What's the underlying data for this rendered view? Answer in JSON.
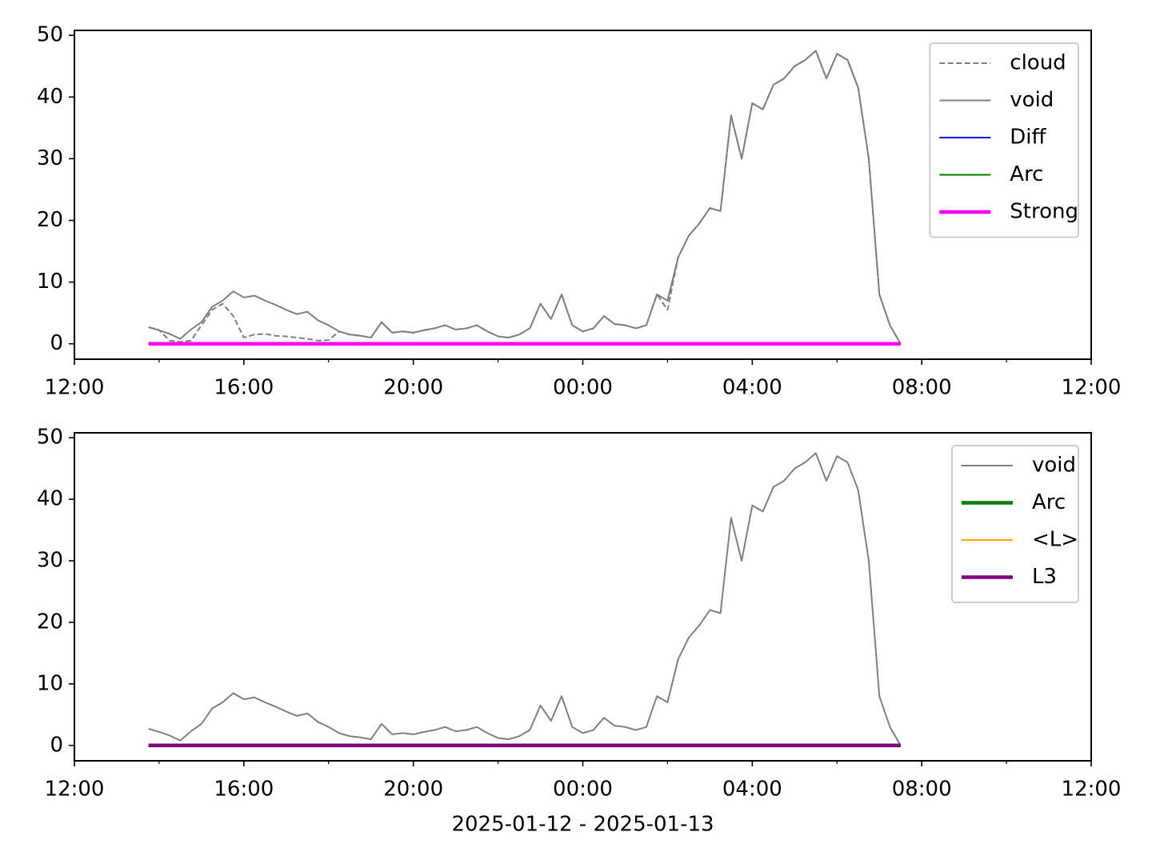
{
  "chart_data": [
    {
      "type": "line",
      "x": [
        1.75,
        2,
        2.25,
        2.5,
        2.75,
        3,
        3.25,
        3.5,
        3.75,
        4,
        4.25,
        4.5,
        4.75,
        5,
        5.25,
        5.5,
        5.75,
        6,
        6.25,
        6.5,
        6.75,
        7,
        7.25,
        7.5,
        7.75,
        8,
        8.25,
        8.5,
        8.75,
        9,
        9.25,
        9.5,
        9.75,
        10,
        10.25,
        10.5,
        10.75,
        11,
        11.25,
        11.5,
        11.75,
        12,
        12.25,
        12.5,
        12.75,
        13,
        13.25,
        13.5,
        13.75,
        14,
        14.25,
        14.5,
        14.75,
        15,
        15.25,
        15.5,
        15.75,
        16,
        16.25,
        16.5,
        16.75,
        17,
        17.25,
        17.5,
        17.75,
        18,
        18.25,
        18.5,
        18.75,
        19,
        19.25,
        19.5
      ],
      "series": [
        {
          "name": "cloud",
          "color": "#808080",
          "linestyle": "dashed",
          "linewidth": 2,
          "values": [
            2.7,
            2.2,
            0.5,
            0.3,
            0.5,
            3.0,
            5.5,
            6.5,
            4.5,
            1.0,
            1.5,
            1.6,
            1.3,
            1.2,
            1.0,
            0.8,
            0.5,
            0.6,
            2.0,
            1.5,
            1.3,
            1.0,
            3.5,
            1.8,
            2.0,
            1.8,
            2.2,
            2.5,
            3.0,
            2.3,
            2.5,
            3.0,
            2.0,
            1.2,
            1.0,
            1.5,
            2.5,
            6.5,
            4.0,
            8.0,
            3.0,
            2.0,
            2.5,
            4.5,
            3.2,
            3.0,
            2.5,
            3.0,
            8.0,
            5.5,
            14.0,
            17.5,
            19.5,
            22.0,
            21.5,
            37.0,
            30.0,
            39.0,
            38.0,
            42.0,
            43.0,
            45.0,
            46.0,
            47.5,
            43.0,
            47.0,
            46.0,
            41.5,
            30.0,
            8.0,
            3.0,
            0.0
          ]
        },
        {
          "name": "void",
          "color": "#808080",
          "linestyle": "solid",
          "linewidth": 2,
          "values": [
            2.7,
            2.2,
            1.6,
            0.8,
            2.3,
            3.5,
            6.0,
            7.0,
            8.5,
            7.5,
            7.8,
            7.0,
            6.3,
            5.5,
            4.8,
            5.2,
            3.8,
            3.0,
            2.0,
            1.5,
            1.3,
            1.0,
            3.5,
            1.8,
            2.0,
            1.8,
            2.2,
            2.5,
            3.0,
            2.3,
            2.5,
            3.0,
            2.0,
            1.2,
            1.0,
            1.5,
            2.5,
            6.5,
            4.0,
            8.0,
            3.0,
            2.0,
            2.5,
            4.5,
            3.2,
            3.0,
            2.5,
            3.0,
            8.0,
            7.0,
            14.0,
            17.5,
            19.5,
            22.0,
            21.5,
            37.0,
            30.0,
            39.0,
            38.0,
            42.0,
            43.0,
            45.0,
            46.0,
            47.5,
            43.0,
            47.0,
            46.0,
            41.5,
            30.0,
            8.0,
            3.0,
            0.0
          ]
        },
        {
          "name": "Diff",
          "color": "#0000ff",
          "linestyle": "solid",
          "linewidth": 2,
          "values": [
            0,
            0,
            0,
            0,
            0,
            0,
            0,
            0,
            0,
            0,
            0,
            0,
            0,
            0,
            0,
            0,
            0,
            0,
            0,
            0,
            0,
            0,
            0,
            0,
            0,
            0,
            0,
            0,
            0,
            0,
            0,
            0,
            0,
            0,
            0,
            0,
            0,
            0,
            0,
            0,
            0,
            0,
            0,
            0,
            0,
            0,
            0,
            0,
            0,
            0,
            0,
            0,
            0,
            0,
            0,
            0,
            0,
            0,
            0,
            0,
            0,
            0,
            0,
            0,
            0,
            0,
            0,
            0,
            0,
            0,
            0,
            0
          ]
        },
        {
          "name": "Arc",
          "color": "#008000",
          "linestyle": "solid",
          "linewidth": 2,
          "values": [
            0,
            0,
            0,
            0,
            0,
            0,
            0,
            0,
            0,
            0,
            0,
            0,
            0,
            0,
            0,
            0,
            0,
            0,
            0,
            0,
            0,
            0,
            0,
            0,
            0,
            0,
            0,
            0,
            0,
            0,
            0,
            0,
            0,
            0,
            0,
            0,
            0,
            0,
            0,
            0,
            0,
            0,
            0,
            0,
            0,
            0,
            0,
            0,
            0,
            0,
            0,
            0,
            0,
            0,
            0,
            0,
            0,
            0,
            0,
            0,
            0,
            0,
            0,
            0,
            0,
            0,
            0,
            0,
            0,
            0,
            0,
            0
          ]
        },
        {
          "name": "Strong",
          "color": "#ff00ff",
          "linestyle": "solid",
          "linewidth": 4.5,
          "values": [
            0,
            0,
            0,
            0,
            0,
            0,
            0,
            0,
            0,
            0,
            0,
            0,
            0,
            0,
            0,
            0,
            0,
            0,
            0,
            0,
            0,
            0,
            0,
            0,
            0,
            0,
            0,
            0,
            0,
            0,
            0,
            0,
            0,
            0,
            0,
            0,
            0,
            0,
            0,
            0,
            0,
            0,
            0,
            0,
            0,
            0,
            0,
            0,
            0,
            0,
            0,
            0,
            0,
            0,
            0,
            0,
            0,
            0,
            0,
            0,
            0,
            0,
            0,
            0,
            0,
            0,
            0,
            0,
            0,
            0,
            0,
            0
          ]
        }
      ],
      "xlim": [
        0,
        24
      ],
      "ylim": [
        -2.5,
        50.8
      ],
      "xticks": [
        {
          "value": 0,
          "label": "12:00"
        },
        {
          "value": 4,
          "label": "16:00"
        },
        {
          "value": 8,
          "label": "20:00"
        },
        {
          "value": 12,
          "label": "00:00"
        },
        {
          "value": 16,
          "label": "04:00"
        },
        {
          "value": 20,
          "label": "08:00"
        },
        {
          "value": 24,
          "label": "12:00"
        }
      ],
      "xminorticks": [
        2,
        6,
        10,
        14,
        18,
        22
      ],
      "yticks": [
        0,
        10,
        20,
        30,
        40,
        50
      ],
      "grid": false,
      "legend": "upper right"
    },
    {
      "type": "line",
      "x": [
        1.75,
        2,
        2.25,
        2.5,
        2.75,
        3,
        3.25,
        3.5,
        3.75,
        4,
        4.25,
        4.5,
        4.75,
        5,
        5.25,
        5.5,
        5.75,
        6,
        6.25,
        6.5,
        6.75,
        7,
        7.25,
        7.5,
        7.75,
        8,
        8.25,
        8.5,
        8.75,
        9,
        9.25,
        9.5,
        9.75,
        10,
        10.25,
        10.5,
        10.75,
        11,
        11.25,
        11.5,
        11.75,
        12,
        12.25,
        12.5,
        12.75,
        13,
        13.25,
        13.5,
        13.75,
        14,
        14.25,
        14.5,
        14.75,
        15,
        15.25,
        15.5,
        15.75,
        16,
        16.25,
        16.5,
        16.75,
        17,
        17.25,
        17.5,
        17.75,
        18,
        18.25,
        18.5,
        18.75,
        19,
        19.25,
        19.5
      ],
      "series": [
        {
          "name": "void",
          "color": "#808080",
          "linestyle": "solid",
          "linewidth": 2,
          "values": [
            2.7,
            2.2,
            1.6,
            0.8,
            2.3,
            3.5,
            6.0,
            7.0,
            8.5,
            7.5,
            7.8,
            7.0,
            6.3,
            5.5,
            4.8,
            5.2,
            3.8,
            3.0,
            2.0,
            1.5,
            1.3,
            1.0,
            3.5,
            1.8,
            2.0,
            1.8,
            2.2,
            2.5,
            3.0,
            2.3,
            2.5,
            3.0,
            2.0,
            1.2,
            1.0,
            1.5,
            2.5,
            6.5,
            4.0,
            8.0,
            3.0,
            2.0,
            2.5,
            4.5,
            3.2,
            3.0,
            2.5,
            3.0,
            8.0,
            7.0,
            14.0,
            17.5,
            19.5,
            22.0,
            21.5,
            37.0,
            30.0,
            39.0,
            38.0,
            42.0,
            43.0,
            45.0,
            46.0,
            47.5,
            43.0,
            47.0,
            46.0,
            41.5,
            30.0,
            8.0,
            3.0,
            0.0
          ]
        },
        {
          "name": "Arc",
          "color": "#008000",
          "linestyle": "solid",
          "linewidth": 4.5,
          "values": [
            0,
            0,
            0,
            0,
            0,
            0,
            0,
            0,
            0,
            0,
            0,
            0,
            0,
            0,
            0,
            0,
            0,
            0,
            0,
            0,
            0,
            0,
            0,
            0,
            0,
            0,
            0,
            0,
            0,
            0,
            0,
            0,
            0,
            0,
            0,
            0,
            0,
            0,
            0,
            0,
            0,
            0,
            0,
            0,
            0,
            0,
            0,
            0,
            0,
            0,
            0,
            0,
            0,
            0,
            0,
            0,
            0,
            0,
            0,
            0,
            0,
            0,
            0,
            0,
            0,
            0,
            0,
            0,
            0,
            0,
            0,
            0
          ]
        },
        {
          "name": "<L>",
          "color": "#ffa500",
          "linestyle": "solid",
          "linewidth": 2,
          "values": [
            0,
            0,
            0,
            0,
            0,
            0,
            0,
            0,
            0,
            0,
            0,
            0,
            0,
            0,
            0,
            0,
            0,
            0,
            0,
            0,
            0,
            0,
            0,
            0,
            0,
            0,
            0,
            0,
            0,
            0,
            0,
            0,
            0,
            0,
            0,
            0,
            0,
            0,
            0,
            0,
            0,
            0,
            0,
            0,
            0,
            0,
            0,
            0,
            0,
            0,
            0,
            0,
            0,
            0,
            0,
            0,
            0,
            0,
            0,
            0,
            0,
            0,
            0,
            0,
            0,
            0,
            0,
            0,
            0,
            0,
            0,
            0
          ]
        },
        {
          "name": "L3",
          "color": "#800080",
          "linestyle": "solid",
          "linewidth": 4.5,
          "values": [
            0,
            0,
            0,
            0,
            0,
            0,
            0,
            0,
            0,
            0,
            0,
            0,
            0,
            0,
            0,
            0,
            0,
            0,
            0,
            0,
            0,
            0,
            0,
            0,
            0,
            0,
            0,
            0,
            0,
            0,
            0,
            0,
            0,
            0,
            0,
            0,
            0,
            0,
            0,
            0,
            0,
            0,
            0,
            0,
            0,
            0,
            0,
            0,
            0,
            0,
            0,
            0,
            0,
            0,
            0,
            0,
            0,
            0,
            0,
            0,
            0,
            0,
            0,
            0,
            0,
            0,
            0,
            0,
            0,
            0,
            0,
            0
          ]
        }
      ],
      "xlim": [
        0,
        24
      ],
      "ylim": [
        -2.5,
        50.8
      ],
      "xticks": [
        {
          "value": 0,
          "label": "12:00"
        },
        {
          "value": 4,
          "label": "16:00"
        },
        {
          "value": 8,
          "label": "20:00"
        },
        {
          "value": 12,
          "label": "00:00"
        },
        {
          "value": 16,
          "label": "04:00"
        },
        {
          "value": 20,
          "label": "08:00"
        },
        {
          "value": 24,
          "label": "12:00"
        }
      ],
      "xminorticks": [
        2,
        6,
        10,
        14,
        18,
        22
      ],
      "yticks": [
        0,
        10,
        20,
        30,
        40,
        50
      ],
      "xlabel": "2025-01-12 - 2025-01-13",
      "grid": false,
      "legend": "upper right"
    }
  ]
}
